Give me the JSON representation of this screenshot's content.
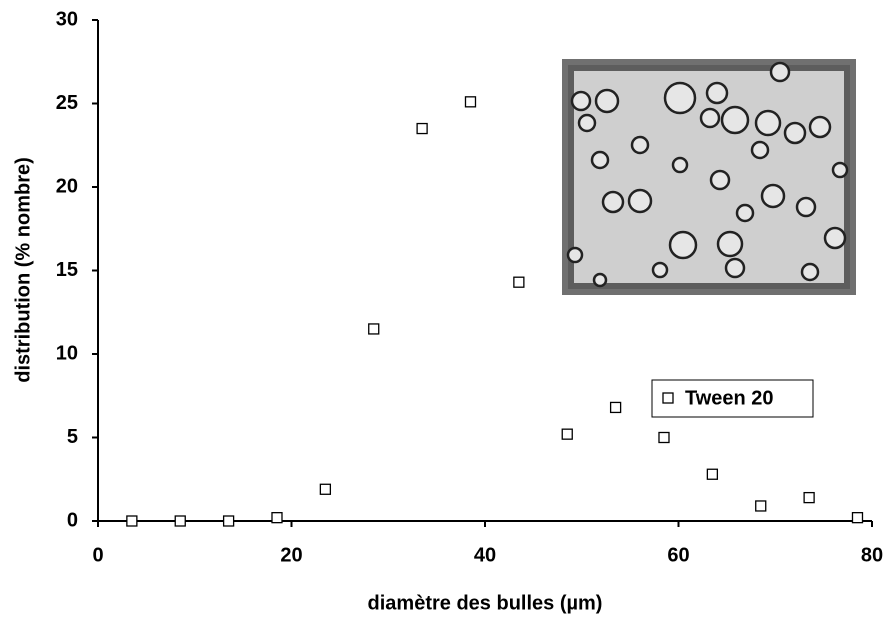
{
  "chart_data": {
    "type": "scatter",
    "x_label": "diamètre des bulles (µm)",
    "y_label": "distribution (% nombre)",
    "series": [
      {
        "name": "Tween 20",
        "color": "#000000",
        "marker": "square",
        "x": [
          3.5,
          8.5,
          13.5,
          18.5,
          23.5,
          28.5,
          33.5,
          38.5,
          43.5,
          48.5,
          53.5,
          58.5,
          63.5,
          68.5,
          73.5,
          78.5
        ],
        "values": [
          0,
          0,
          0,
          0.2,
          1.9,
          11.5,
          23.5,
          25.1,
          14.3,
          5.2,
          6.8,
          5.0,
          2.8,
          0.9,
          1.4,
          0.2
        ]
      }
    ],
    "xlim": [
      0,
      80
    ],
    "xticks": [
      0,
      20,
      40,
      60,
      80
    ],
    "ylim": [
      0,
      30
    ],
    "yticks": [
      0,
      5,
      10,
      15,
      20,
      25,
      30
    ],
    "grid": false,
    "legend": "right"
  }
}
